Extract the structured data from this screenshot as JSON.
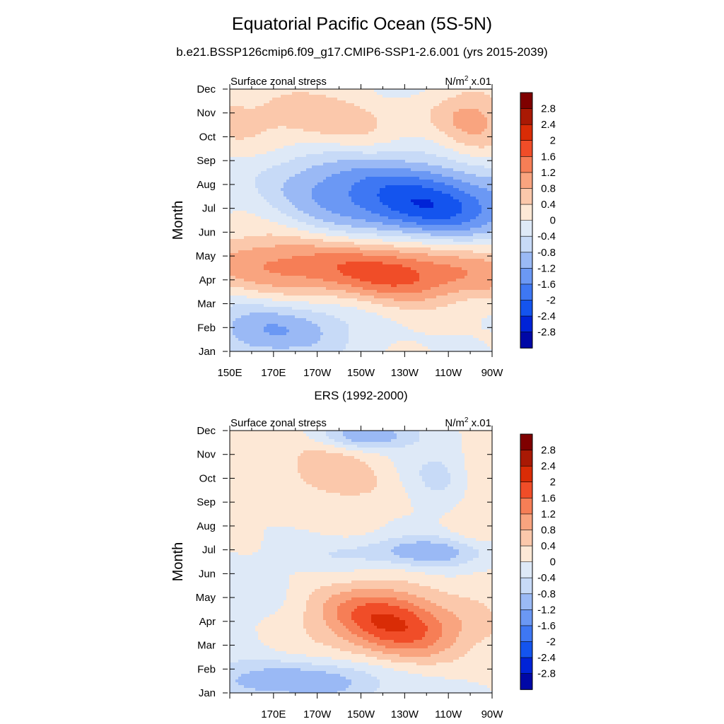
{
  "title": "Equatorial Pacific Ocean (5S-5N)",
  "subtitle": "b.e21.BSSP126cmip6.f09_g17.CMIP6-SSP1-2.6.001 (yrs 2015-2039)",
  "colors": [
    "#00007f",
    "#0008a6",
    "#0023d7",
    "#1454ee",
    "#3e77f3",
    "#6b98f4",
    "#9ab9f5",
    "#c7daf7",
    "#dee9f7",
    "#fde8d6",
    "#fbc8ab",
    "#f9a47f",
    "#f67e56",
    "#f04d28",
    "#d92c06",
    "#a91904",
    "#7f0000"
  ],
  "chart_data": [
    {
      "type": "heatmap",
      "panel_title": "",
      "left_label": "Surface zonal stress",
      "right_label": "N/m",
      "right_label_sup": "2",
      "right_label_suffix": " x.01",
      "ylabel": "Month",
      "xlabel": "",
      "x_ticks": [
        "150E",
        "170E",
        "170W",
        "150W",
        "130W",
        "110W",
        "90W"
      ],
      "x_values": [
        150,
        170,
        190,
        210,
        230,
        250,
        270
      ],
      "xlim": [
        150,
        270
      ],
      "y_ticks": [
        "Jan",
        "Feb",
        "Mar",
        "Apr",
        "May",
        "Jun",
        "Jul",
        "Aug",
        "Sep",
        "Oct",
        "Nov",
        "Dec"
      ],
      "ylim": [
        1,
        12
      ],
      "colorbar_labels": [
        "2.8",
        "2.4",
        "2",
        "1.6",
        "1.2",
        "0.8",
        "0.4",
        "0",
        "-0.4",
        "-0.8",
        "-1.2",
        "-1.6",
        "-2",
        "-2.4",
        "-2.8"
      ],
      "contour_levels": [
        -2.8,
        -2.4,
        -2.0,
        -1.6,
        -1.2,
        -0.8,
        -0.4,
        0,
        0.4,
        0.8,
        1.2,
        1.6,
        2.0,
        2.4,
        2.8
      ],
      "features": [
        {
          "lon": 242,
          "month": 7.0,
          "amp": -2.1,
          "slon": 35,
          "smon": 1.1
        },
        {
          "lon": 205,
          "month": 8.3,
          "amp": -0.9,
          "slon": 30,
          "smon": 1.0
        },
        {
          "lon": 205,
          "month": 4.7,
          "amp": 1.45,
          "slon": 55,
          "smon": 0.9
        },
        {
          "lon": 235,
          "month": 3.9,
          "amp": 0.75,
          "slon": 35,
          "smon": 0.7
        },
        {
          "lon": 172,
          "month": 1.9,
          "amp": -1.25,
          "slon": 22,
          "smon": 0.9
        },
        {
          "lon": 188,
          "month": 10.8,
          "amp": 0.7,
          "slon": 40,
          "smon": 1.0
        },
        {
          "lon": 262,
          "month": 10.8,
          "amp": 0.75,
          "slon": 12,
          "smon": 1.2
        },
        {
          "lon": 230,
          "month": 11.8,
          "amp": -0.3,
          "slon": 25,
          "smon": 0.5
        }
      ]
    },
    {
      "type": "heatmap",
      "panel_title": "ERS (1992-2000)",
      "left_label": "Surface zonal stress",
      "right_label": "N/m",
      "right_label_sup": "2",
      "right_label_suffix": " x.01",
      "ylabel": "Month",
      "xlabel": "",
      "x_ticks": [
        "",
        "170E",
        "170W",
        "150W",
        "130W",
        "110W",
        "90W"
      ],
      "x_values": [
        150,
        170,
        190,
        210,
        230,
        250,
        270
      ],
      "xlim": [
        150,
        270
      ],
      "y_ticks": [
        "Jan",
        "Feb",
        "Mar",
        "Apr",
        "May",
        "Jun",
        "Jul",
        "Aug",
        "Sep",
        "Oct",
        "Nov",
        "Dec"
      ],
      "ylim": [
        1,
        12
      ],
      "colorbar_labels": [
        "2.8",
        "2.4",
        "2",
        "1.6",
        "1.2",
        "0.8",
        "0.4",
        "0",
        "-0.4",
        "-0.8",
        "-1.2",
        "-1.6",
        "-2",
        "-2.4",
        "-2.8"
      ],
      "contour_levels": [
        -2.8,
        -2.4,
        -2.0,
        -1.6,
        -1.2,
        -0.8,
        -0.4,
        0,
        0.4,
        0.8,
        1.2,
        1.6,
        2.0,
        2.4,
        2.8
      ],
      "features": [
        {
          "lon": 230,
          "month": 3.6,
          "amp": 1.55,
          "slon": 24,
          "smon": 0.9
        },
        {
          "lon": 212,
          "month": 4.6,
          "amp": 1.0,
          "slon": 20,
          "smon": 0.8
        },
        {
          "lon": 238,
          "month": 6.9,
          "amp": -1.05,
          "slon": 28,
          "smon": 0.45
        },
        {
          "lon": 180,
          "month": 1.5,
          "amp": -1.2,
          "slon": 30,
          "smon": 0.6
        },
        {
          "lon": 212,
          "month": 11.8,
          "amp": -1.3,
          "slon": 16,
          "smon": 0.4
        },
        {
          "lon": 248,
          "month": 10.3,
          "amp": -0.6,
          "slon": 12,
          "smon": 1.0
        },
        {
          "lon": 190,
          "month": 10.2,
          "amp": 0.55,
          "slon": 28,
          "smon": 1.3
        },
        {
          "lon": 162,
          "month": 5.2,
          "amp": -0.35,
          "slon": 12,
          "smon": 1.2
        },
        {
          "lon": 262,
          "month": 9.5,
          "amp": 0.3,
          "slon": 8,
          "smon": 3.0
        }
      ]
    }
  ]
}
